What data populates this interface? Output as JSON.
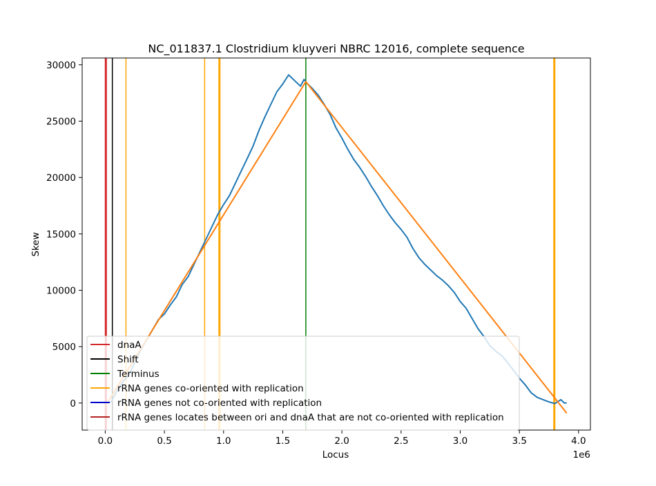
{
  "chart_data": {
    "type": "line",
    "title": "NC_011837.1 Clostridium kluyveri NBRC 12016, complete sequence",
    "xlabel": "Locus",
    "ylabel": "Skew",
    "x_offset_label": "1e6",
    "xlim": [
      -0.195,
      4.1
    ],
    "ylim": [
      -2400,
      30600
    ],
    "xticks": [
      0.0,
      0.5,
      1.0,
      1.5,
      2.0,
      2.5,
      3.0,
      3.5,
      4.0
    ],
    "xtick_labels": [
      "0.0",
      "0.5",
      "1.0",
      "1.5",
      "2.0",
      "2.5",
      "3.0",
      "3.5",
      "4.0"
    ],
    "yticks": [
      0,
      5000,
      10000,
      15000,
      20000,
      25000,
      30000
    ],
    "ytick_labels": [
      "0",
      "5000",
      "10000",
      "15000",
      "20000",
      "25000",
      "30000"
    ],
    "grid": false,
    "legend_position": "lower-left",
    "series": [
      {
        "color": "#1f77b4",
        "x": [
          0.0,
          0.05,
          0.1,
          0.15,
          0.2,
          0.25,
          0.3,
          0.35,
          0.4,
          0.45,
          0.5,
          0.55,
          0.6,
          0.65,
          0.7,
          0.75,
          0.8,
          0.85,
          0.9,
          0.95,
          1.0,
          1.05,
          1.1,
          1.15,
          1.2,
          1.25,
          1.3,
          1.35,
          1.4,
          1.45,
          1.5,
          1.55,
          1.6,
          1.65,
          1.68,
          1.7,
          1.75,
          1.8,
          1.85,
          1.9,
          1.95,
          2.0,
          2.05,
          2.1,
          2.15,
          2.2,
          2.25,
          2.3,
          2.35,
          2.4,
          2.45,
          2.5,
          2.55,
          2.6,
          2.65,
          2.7,
          2.75,
          2.8,
          2.85,
          2.9,
          2.95,
          3.0,
          3.05,
          3.1,
          3.15,
          3.2,
          3.25,
          3.3,
          3.35,
          3.4,
          3.45,
          3.5,
          3.55,
          3.6,
          3.65,
          3.7,
          3.75,
          3.8,
          3.85,
          3.88,
          3.9
        ],
        "y": [
          0,
          100,
          1100,
          1900,
          2500,
          3600,
          4700,
          5600,
          6500,
          7400,
          7900,
          8700,
          9400,
          10500,
          11200,
          12300,
          13400,
          14500,
          15600,
          16700,
          17600,
          18400,
          19500,
          20600,
          21700,
          22800,
          24200,
          25400,
          26500,
          27600,
          28300,
          29100,
          28600,
          28100,
          28700,
          28400,
          27900,
          27300,
          26500,
          25600,
          24400,
          23500,
          22500,
          21600,
          20900,
          20100,
          19200,
          18400,
          17500,
          16700,
          16000,
          15400,
          14700,
          13700,
          12900,
          12300,
          11800,
          11300,
          10900,
          10400,
          9800,
          9000,
          8400,
          7500,
          6600,
          5900,
          5100,
          4600,
          4200,
          3600,
          2900,
          2200,
          1600,
          900,
          500,
          300,
          100,
          -50,
          300,
          0,
          0
        ]
      },
      {
        "color": "#ff7f0e",
        "x": [
          0.0,
          1.695,
          3.9
        ],
        "y": [
          -300,
          28500,
          -900
        ]
      }
    ],
    "vlines": [
      {
        "x": 0.005,
        "color": "#d62728",
        "width": 3
      },
      {
        "x": 0.06,
        "color": "#000000",
        "width": 1.5
      },
      {
        "x": 0.175,
        "color": "#ffa500",
        "width": 1.5
      },
      {
        "x": 0.84,
        "color": "#ffa500",
        "width": 1.5
      },
      {
        "x": 0.965,
        "color": "#ffa500",
        "width": 3
      },
      {
        "x": 1.695,
        "color": "#008000",
        "width": 1.5
      },
      {
        "x": 3.795,
        "color": "#ffa500",
        "width": 3
      }
    ],
    "legend": [
      {
        "label": "dnaA",
        "color": "#d62728"
      },
      {
        "label": "Shift",
        "color": "#000000"
      },
      {
        "label": "Terminus",
        "color": "#008000"
      },
      {
        "label": "rRNA genes co-oriented with replication",
        "color": "#ffa500"
      },
      {
        "label": "rRNA genes not co-oriented with replication",
        "color": "#0000cd"
      },
      {
        "label": "rRNA genes locates between ori and dnaA that are not co-oriented with replication",
        "color": "#b22222"
      }
    ]
  }
}
